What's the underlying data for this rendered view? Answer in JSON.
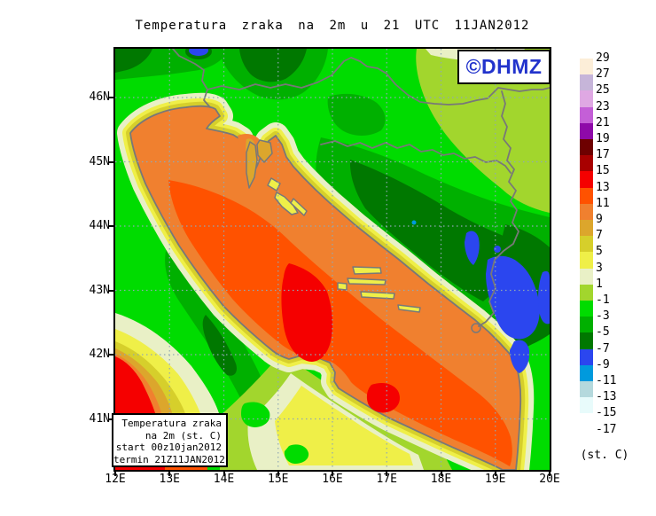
{
  "title": "Temperatura zraka na 2m u 21 UTC 11JAN2012",
  "branding": {
    "label": "©DHMZ",
    "color": "#2233cc"
  },
  "infobox": {
    "lines": [
      "Temperatura zraka",
      "na 2m (st. C)",
      "start 00z10jan2012",
      "termin 21Z11JAN2012"
    ]
  },
  "axes": {
    "lat": [
      "46N",
      "45N",
      "44N",
      "43N",
      "42N",
      "41N"
    ],
    "lon": [
      "12E",
      "13E",
      "14E",
      "15E",
      "16E",
      "17E",
      "18E",
      "19E",
      "20E"
    ]
  },
  "legend": {
    "unit_label": "(st. C)",
    "boundary_labels": [
      "29",
      "27",
      "25",
      "23",
      "21",
      "19",
      "17",
      "15",
      "13",
      "11",
      "9",
      "7",
      "5",
      "3",
      "1",
      "-1",
      "-3",
      "-5",
      "-7",
      "-9",
      "-11",
      "-13",
      "-15",
      "-17"
    ],
    "swatches": [
      "#fceed8",
      "#c6b5d9",
      "#dfa8e3",
      "#c45fd7",
      "#8e09a9",
      "#6e0000",
      "#a80000",
      "#f50000",
      "#ff5200",
      "#f0802f",
      "#dca62c",
      "#d6cf2b",
      "#efef48",
      "#e9f0c6",
      "#a2d62d",
      "#00dc00",
      "#00b000",
      "#007800",
      "#2b46ef",
      "#009add",
      "#b5d9dd",
      "#e8fbfb",
      "#ffffff"
    ]
  }
}
